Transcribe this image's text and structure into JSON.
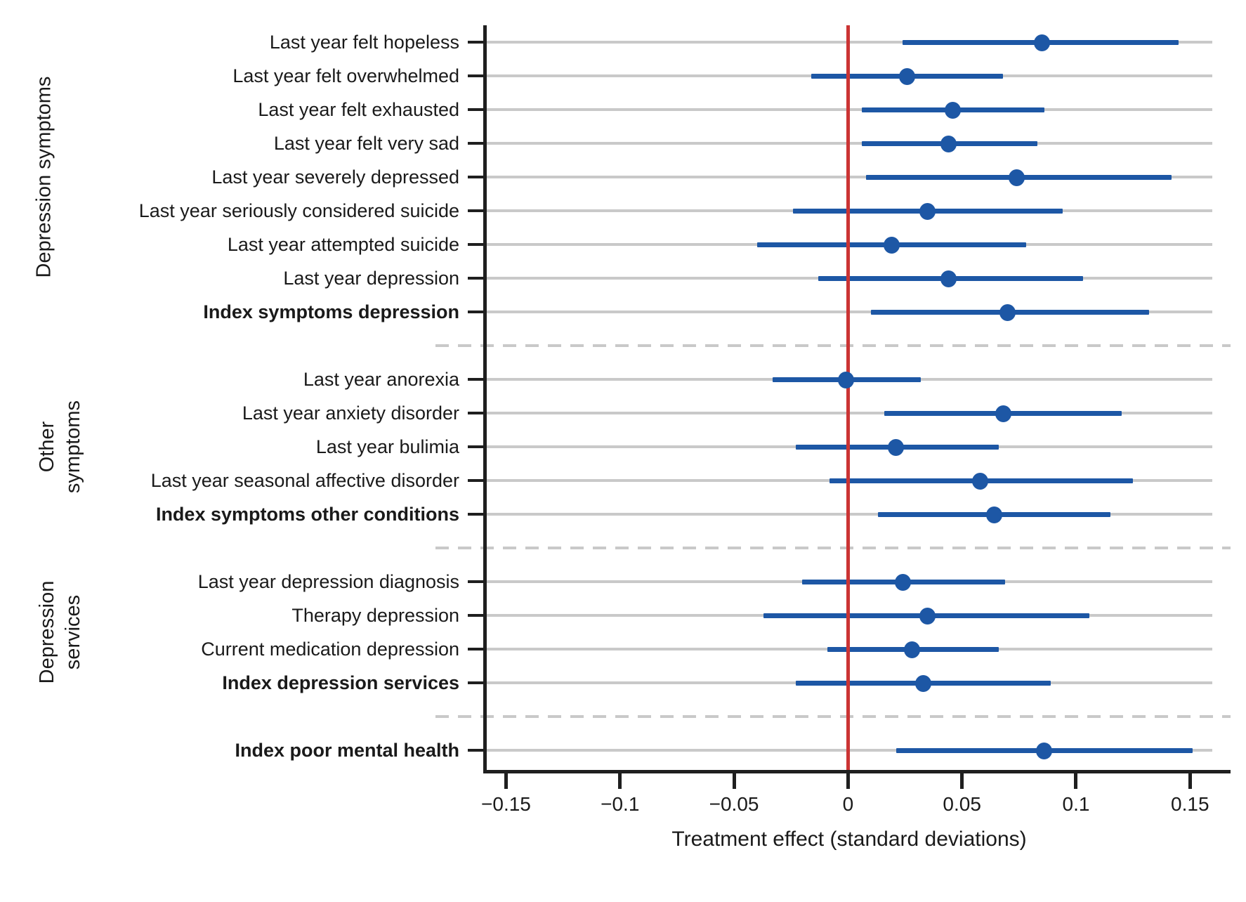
{
  "chart_data": {
    "type": "scatter",
    "variant": "coefficient-plot-with-ci",
    "title": "",
    "xlabel": "Treatment effect (standard deviations)",
    "xlim": [
      -0.16,
      0.161
    ],
    "x_ticks": [
      {
        "value": -0.15,
        "label": "−0.15"
      },
      {
        "value": -0.1,
        "label": "−0.1"
      },
      {
        "value": -0.05,
        "label": "−0.05"
      },
      {
        "value": 0,
        "label": "0"
      },
      {
        "value": 0.05,
        "label": "0.05"
      },
      {
        "value": 0.1,
        "label": "0.1"
      },
      {
        "value": 0.15,
        "label": "0.15"
      }
    ],
    "grid": "horizontal-per-row",
    "legend": "none",
    "reference_line": {
      "x": 0
    },
    "colors": {
      "point": "#1d57a5",
      "ci": "#1d57a5",
      "reference": "#cb3434",
      "gridline": "#c9c9c9",
      "separator": "#c9c9c9",
      "axis": "#1f1f1f",
      "text": "#1a1a1a"
    },
    "groups": [
      {
        "label": "Depression symptoms",
        "label_lines": [
          "Depression symptoms"
        ],
        "rows": [
          {
            "label": "Last year felt hopeless",
            "bold": false,
            "estimate": 0.085,
            "ci_low": 0.024,
            "ci_high": 0.145
          },
          {
            "label": "Last year felt overwhelmed",
            "bold": false,
            "estimate": 0.026,
            "ci_low": -0.016,
            "ci_high": 0.068
          },
          {
            "label": "Last year felt exhausted",
            "bold": false,
            "estimate": 0.046,
            "ci_low": 0.006,
            "ci_high": 0.086
          },
          {
            "label": "Last year felt very sad",
            "bold": false,
            "estimate": 0.044,
            "ci_low": 0.006,
            "ci_high": 0.083
          },
          {
            "label": "Last year severely depressed",
            "bold": false,
            "estimate": 0.074,
            "ci_low": 0.008,
            "ci_high": 0.142
          },
          {
            "label": "Last year seriously considered suicide",
            "bold": false,
            "estimate": 0.035,
            "ci_low": -0.024,
            "ci_high": 0.094
          },
          {
            "label": "Last year attempted suicide",
            "bold": false,
            "estimate": 0.019,
            "ci_low": -0.04,
            "ci_high": 0.078
          },
          {
            "label": "Last year depression",
            "bold": false,
            "estimate": 0.044,
            "ci_low": -0.013,
            "ci_high": 0.103
          },
          {
            "label": "Index symptoms depression",
            "bold": true,
            "estimate": 0.07,
            "ci_low": 0.01,
            "ci_high": 0.132
          }
        ]
      },
      {
        "label": "Other symptoms",
        "label_lines": [
          "Other",
          "symptoms"
        ],
        "rows": [
          {
            "label": "Last year anorexia",
            "bold": false,
            "estimate": -0.001,
            "ci_low": -0.033,
            "ci_high": 0.032
          },
          {
            "label": "Last year anxiety disorder",
            "bold": false,
            "estimate": 0.068,
            "ci_low": 0.016,
            "ci_high": 0.12
          },
          {
            "label": "Last year bulimia",
            "bold": false,
            "estimate": 0.021,
            "ci_low": -0.023,
            "ci_high": 0.066
          },
          {
            "label": "Last year seasonal affective disorder",
            "bold": false,
            "estimate": 0.058,
            "ci_low": -0.008,
            "ci_high": 0.125
          },
          {
            "label": "Index symptoms other conditions",
            "bold": true,
            "estimate": 0.064,
            "ci_low": 0.013,
            "ci_high": 0.115
          }
        ]
      },
      {
        "label": "Depression services",
        "label_lines": [
          "Depression",
          "services"
        ],
        "rows": [
          {
            "label": "Last year depression diagnosis",
            "bold": false,
            "estimate": 0.024,
            "ci_low": -0.02,
            "ci_high": 0.069
          },
          {
            "label": "Therapy depression",
            "bold": false,
            "estimate": 0.035,
            "ci_low": -0.037,
            "ci_high": 0.106
          },
          {
            "label": "Current medication depression",
            "bold": false,
            "estimate": 0.028,
            "ci_low": -0.009,
            "ci_high": 0.066
          },
          {
            "label": "Index depression services",
            "bold": true,
            "estimate": 0.033,
            "ci_low": -0.023,
            "ci_high": 0.089
          }
        ]
      },
      {
        "label": "",
        "label_lines": [],
        "rows": [
          {
            "label": "Index poor mental health",
            "bold": true,
            "estimate": 0.086,
            "ci_low": 0.021,
            "ci_high": 0.151
          }
        ]
      }
    ]
  }
}
